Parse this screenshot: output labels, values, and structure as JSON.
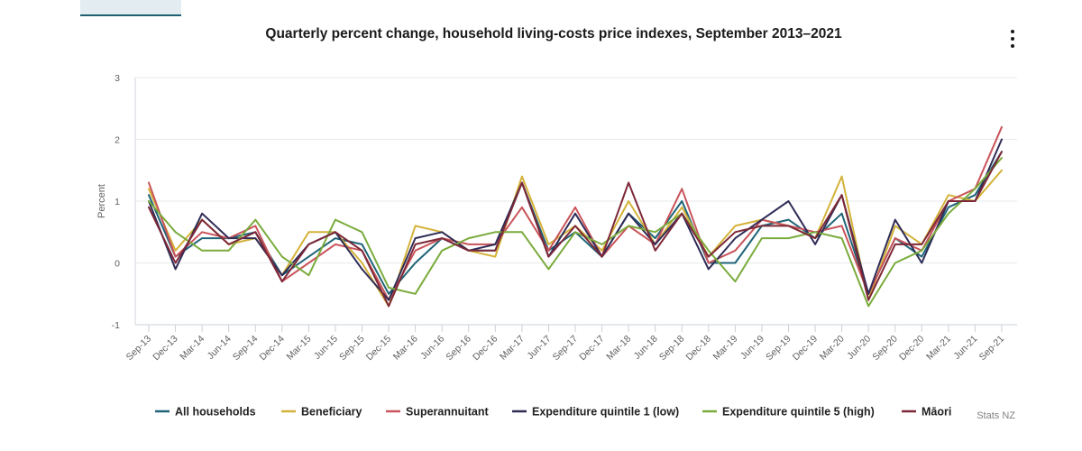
{
  "chart_data": {
    "type": "line",
    "title": "Quarterly percent change, household living-costs price indexes, September 2013–2021",
    "ylabel": "Percent",
    "xlabel": "",
    "ylim": [
      -1,
      3
    ],
    "yticks": [
      -1,
      0,
      1,
      2,
      3
    ],
    "grid": true,
    "legend_position": "bottom",
    "credits": "Stats NZ",
    "x": [
      "Sep-13",
      "Dec-13",
      "Mar-14",
      "Jun-14",
      "Sep-14",
      "Dec-14",
      "Mar-15",
      "Jun-15",
      "Sep-15",
      "Dec-15",
      "Mar-16",
      "Jun-16",
      "Sep-16",
      "Dec-16",
      "Mar-17",
      "Jun-17",
      "Sep-17",
      "Dec-17",
      "Mar-18",
      "Jun-18",
      "Sep-18",
      "Dec-18",
      "Mar-19",
      "Jun-19",
      "Sep-19",
      "Dec-19",
      "Mar-20",
      "Jun-20",
      "Sep-20",
      "Dec-20",
      "Mar-21",
      "Jun-21",
      "Sep-21"
    ],
    "series": [
      {
        "name": "All households",
        "color": "#1f6478",
        "values": [
          1.1,
          0.1,
          0.4,
          0.4,
          0.5,
          -0.2,
          0.1,
          0.4,
          0.3,
          -0.5,
          0.0,
          0.4,
          0.2,
          0.2,
          1.3,
          0.2,
          0.5,
          0.1,
          0.8,
          0.4,
          1.0,
          0.0,
          0.0,
          0.6,
          0.7,
          0.4,
          0.8,
          -0.5,
          0.4,
          0.1,
          0.9,
          1.1,
          1.8
        ]
      },
      {
        "name": "Beneficiary",
        "color": "#d4b23a",
        "values": [
          1.2,
          0.2,
          0.7,
          0.3,
          0.4,
          -0.2,
          0.5,
          0.5,
          0.0,
          -0.7,
          0.6,
          0.5,
          0.2,
          0.1,
          1.4,
          0.3,
          0.6,
          0.2,
          1.0,
          0.3,
          0.9,
          0.1,
          0.6,
          0.7,
          0.6,
          0.4,
          1.4,
          -0.6,
          0.6,
          0.3,
          1.1,
          1.0,
          1.5
        ]
      },
      {
        "name": "Superannuitant",
        "color": "#c9545b",
        "values": [
          1.3,
          0.1,
          0.5,
          0.4,
          0.6,
          -0.3,
          0.0,
          0.3,
          0.2,
          -0.6,
          0.2,
          0.4,
          0.3,
          0.3,
          0.9,
          0.2,
          0.9,
          0.1,
          0.6,
          0.3,
          1.2,
          0.0,
          0.2,
          0.7,
          0.6,
          0.5,
          0.6,
          -0.5,
          0.4,
          0.2,
          1.0,
          1.2,
          2.2
        ]
      },
      {
        "name": "Expenditure quintile 1 (low)",
        "color": "#2e2c57",
        "values": [
          1.0,
          -0.1,
          0.8,
          0.4,
          0.4,
          -0.2,
          0.3,
          0.5,
          -0.1,
          -0.6,
          0.4,
          0.5,
          0.2,
          0.3,
          1.3,
          0.1,
          0.8,
          0.1,
          0.8,
          0.3,
          0.8,
          -0.1,
          0.4,
          0.7,
          1.0,
          0.3,
          1.1,
          -0.5,
          0.7,
          0.0,
          1.0,
          1.0,
          2.0
        ]
      },
      {
        "name": "Expenditure quintile 5 (high)",
        "color": "#7aab3c",
        "values": [
          1.0,
          0.5,
          0.2,
          0.2,
          0.7,
          0.1,
          -0.2,
          0.7,
          0.5,
          -0.4,
          -0.5,
          0.2,
          0.4,
          0.5,
          0.5,
          -0.1,
          0.5,
          0.3,
          0.6,
          0.5,
          0.8,
          0.2,
          -0.3,
          0.4,
          0.4,
          0.5,
          0.4,
          -0.7,
          0.0,
          0.2,
          0.8,
          1.2,
          1.7
        ]
      },
      {
        "name": "Māori",
        "color": "#7d2838",
        "values": [
          0.9,
          0.0,
          0.7,
          0.3,
          0.5,
          -0.3,
          0.3,
          0.5,
          0.2,
          -0.7,
          0.3,
          0.4,
          0.2,
          0.2,
          1.3,
          0.1,
          0.6,
          0.1,
          1.3,
          0.2,
          0.8,
          0.1,
          0.5,
          0.6,
          0.6,
          0.4,
          1.1,
          -0.6,
          0.3,
          0.3,
          1.0,
          1.0,
          1.8
        ]
      }
    ]
  }
}
